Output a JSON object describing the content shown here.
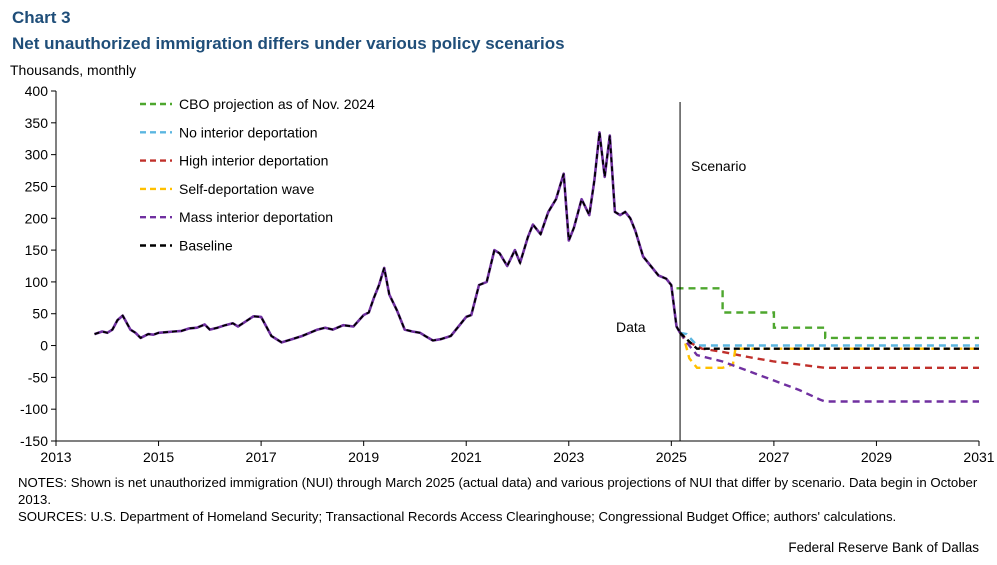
{
  "header": {
    "chart_number": "Chart 3",
    "title": "Net unauthorized immigration differs under various policy scenarios",
    "units": "Thousands,  monthly"
  },
  "notes": {
    "notes_text": "NOTES: Shown is net unauthorized immigration (NUI) through March 2025 (actual data) and various projections of NUI that differ by scenario. Data begin in October 2013.",
    "sources_text": "SOURCES: U.S. Department of Homeland Security; Transactional Records Access Clearinghouse; Congressional Budget Office; authors' calculations."
  },
  "credit": "Federal Reserve Bank of Dallas",
  "colors": {
    "cbo": "#4ea72e",
    "no_interior": "#5bb6e0",
    "high_interior": "#c0302b",
    "self_deportation": "#ffc000",
    "mass_interior": "#7030a0",
    "baseline": "#000000",
    "historical": "#7030a0"
  },
  "chart_data": {
    "type": "line",
    "title": "Net unauthorized immigration differs under various policy scenarios",
    "xlabel": "",
    "ylabel": "Thousands, monthly",
    "xlim": [
      2013,
      2031
    ],
    "ylim": [
      -150,
      400
    ],
    "x_ticks": [
      2013,
      2015,
      2017,
      2019,
      2021,
      2023,
      2025,
      2027,
      2029,
      2031
    ],
    "x_tick_labels": [
      "2013",
      "2015",
      "2017",
      "2019",
      "2021",
      "2023",
      "2025",
      "2027",
      "2029",
      "2031"
    ],
    "y_ticks": [
      400,
      350,
      300,
      250,
      200,
      150,
      100,
      50,
      0,
      -50,
      -100,
      -150
    ],
    "y_tick_labels": [
      "400",
      "350",
      "300",
      "250",
      "200",
      "150",
      "100",
      "50",
      "0",
      "-50",
      "-100",
      "-150"
    ],
    "annotations": {
      "scenario_label": "Scenario",
      "data_label": "Data",
      "divider_x": 2025.17
    },
    "legend_position": "top-left",
    "historical": {
      "name": "Historical data",
      "x": [
        2013.75,
        2013.9,
        2014.0,
        2014.1,
        2014.2,
        2014.3,
        2014.45,
        2014.55,
        2014.65,
        2014.8,
        2014.9,
        2015.0,
        2015.15,
        2015.3,
        2015.45,
        2015.6,
        2015.75,
        2015.9,
        2016.0,
        2016.15,
        2016.3,
        2016.45,
        2016.55,
        2016.7,
        2016.85,
        2017.0,
        2017.2,
        2017.4,
        2017.6,
        2017.8,
        2017.95,
        2018.1,
        2018.25,
        2018.4,
        2018.6,
        2018.8,
        2019.0,
        2019.1,
        2019.2,
        2019.3,
        2019.4,
        2019.5,
        2019.65,
        2019.8,
        2019.95,
        2020.1,
        2020.2,
        2020.35,
        2020.5,
        2020.7,
        2020.85,
        2021.0,
        2021.1,
        2021.25,
        2021.4,
        2021.55,
        2021.65,
        2021.8,
        2021.95,
        2022.05,
        2022.2,
        2022.3,
        2022.45,
        2022.6,
        2022.75,
        2022.9,
        2023.0,
        2023.1,
        2023.25,
        2023.4,
        2023.5,
        2023.6,
        2023.7,
        2023.8,
        2023.9,
        2024.0,
        2024.1,
        2024.2,
        2024.3,
        2024.45,
        2024.6,
        2024.75,
        2024.9,
        2025.0,
        2025.1,
        2025.17
      ],
      "values": [
        18,
        22,
        20,
        25,
        40,
        47,
        25,
        20,
        12,
        18,
        17,
        20,
        21,
        22,
        23,
        27,
        28,
        33,
        25,
        28,
        32,
        35,
        30,
        38,
        46,
        45,
        15,
        5,
        10,
        15,
        20,
        25,
        28,
        25,
        32,
        30,
        48,
        52,
        75,
        95,
        122,
        80,
        55,
        25,
        22,
        20,
        15,
        8,
        10,
        15,
        30,
        45,
        48,
        95,
        100,
        150,
        145,
        125,
        150,
        130,
        170,
        190,
        175,
        210,
        230,
        270,
        165,
        185,
        230,
        205,
        260,
        335,
        265,
        330,
        210,
        205,
        210,
        200,
        180,
        140,
        125,
        110,
        105,
        95,
        30,
        20
      ]
    },
    "series": [
      {
        "name": "CBO projection as of Nov. 2024",
        "color": "#4ea72e",
        "x": [
          2025.1,
          2025.17,
          2026.0,
          2026.0,
          2027.0,
          2027.0,
          2028.0,
          2028.0,
          2031.0
        ],
        "values": [
          90,
          90,
          90,
          52,
          52,
          28,
          28,
          12,
          12
        ]
      },
      {
        "name": "No interior deportation",
        "color": "#5bb6e0",
        "x": [
          2025.17,
          2025.3,
          2025.5,
          2031.0
        ],
        "values": [
          20,
          18,
          0,
          0
        ]
      },
      {
        "name": "High interior deportation",
        "color": "#c0302b",
        "x": [
          2025.17,
          2025.35,
          2025.6,
          2026.0,
          2026.5,
          2027.0,
          2027.5,
          2028.0,
          2031.0
        ],
        "values": [
          20,
          5,
          -5,
          -10,
          -18,
          -25,
          -30,
          -35,
          -35
        ]
      },
      {
        "name": "Self-deportation wave",
        "color": "#ffc000",
        "x": [
          2025.17,
          2025.25,
          2025.35,
          2025.5,
          2026.0,
          2026.2,
          2026.25,
          2031.0
        ],
        "values": [
          20,
          10,
          -20,
          -35,
          -35,
          -30,
          -5,
          -5
        ]
      },
      {
        "name": "Mass interior deportation",
        "color": "#7030a0",
        "x": [
          2025.17,
          2025.3,
          2025.5,
          2026.0,
          2026.5,
          2027.0,
          2027.5,
          2027.9,
          2028.0,
          2031.0
        ],
        "values": [
          20,
          5,
          -15,
          -25,
          -40,
          -55,
          -70,
          -85,
          -88,
          -88
        ]
      },
      {
        "name": "Baseline",
        "color": "#000000",
        "x": [
          2025.17,
          2025.3,
          2025.5,
          2031.0
        ],
        "values": [
          20,
          10,
          -5,
          -5
        ]
      }
    ]
  }
}
